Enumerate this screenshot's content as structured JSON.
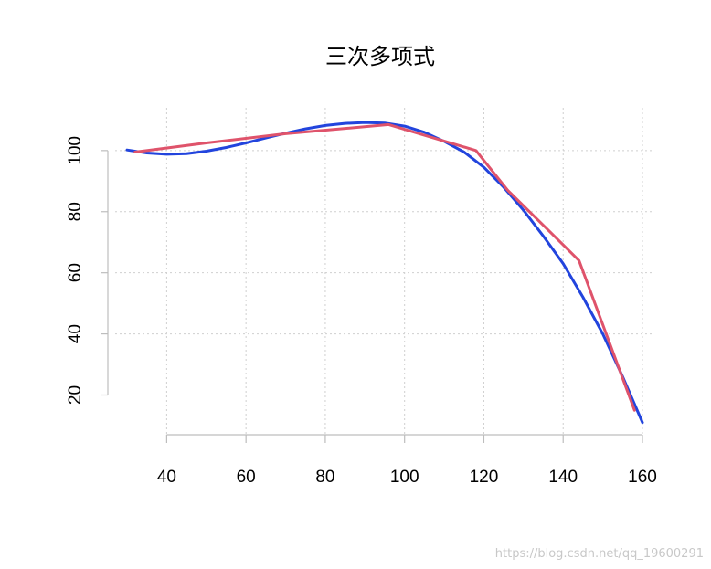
{
  "chart_data": {
    "type": "line",
    "title": "三次多项式",
    "xlabel": "",
    "ylabel": "",
    "xlim": [
      27,
      163
    ],
    "ylim": [
      7,
      114
    ],
    "x_ticks": [
      40,
      60,
      80,
      100,
      120,
      140,
      160
    ],
    "y_ticks": [
      20,
      40,
      60,
      80,
      100
    ],
    "grid": true,
    "series": [
      {
        "color": "#2244dd",
        "x": [
          30,
          35,
          40,
          45,
          50,
          55,
          60,
          65,
          70,
          75,
          80,
          85,
          90,
          95,
          100,
          105,
          110,
          115,
          120,
          125,
          130,
          135,
          140,
          145,
          150,
          155,
          160
        ],
        "y": [
          100.2,
          99.2,
          98.8,
          99.0,
          99.8,
          101.0,
          102.5,
          104.1,
          105.7,
          107.1,
          108.2,
          108.9,
          109.2,
          109.0,
          108.0,
          106.0,
          103.0,
          99.5,
          94.5,
          88.0,
          80.5,
          72.0,
          63.0,
          52.0,
          40.0,
          26.0,
          11.0
        ]
      },
      {
        "color": "#df536b",
        "x": [
          32,
          50,
          70,
          96,
          118,
          126,
          137,
          144,
          158
        ],
        "y": [
          99.5,
          102.5,
          105.5,
          108.5,
          100,
          87,
          73,
          64,
          15
        ]
      }
    ]
  },
  "watermark": "https://blog.csdn.net/qq_19600291"
}
